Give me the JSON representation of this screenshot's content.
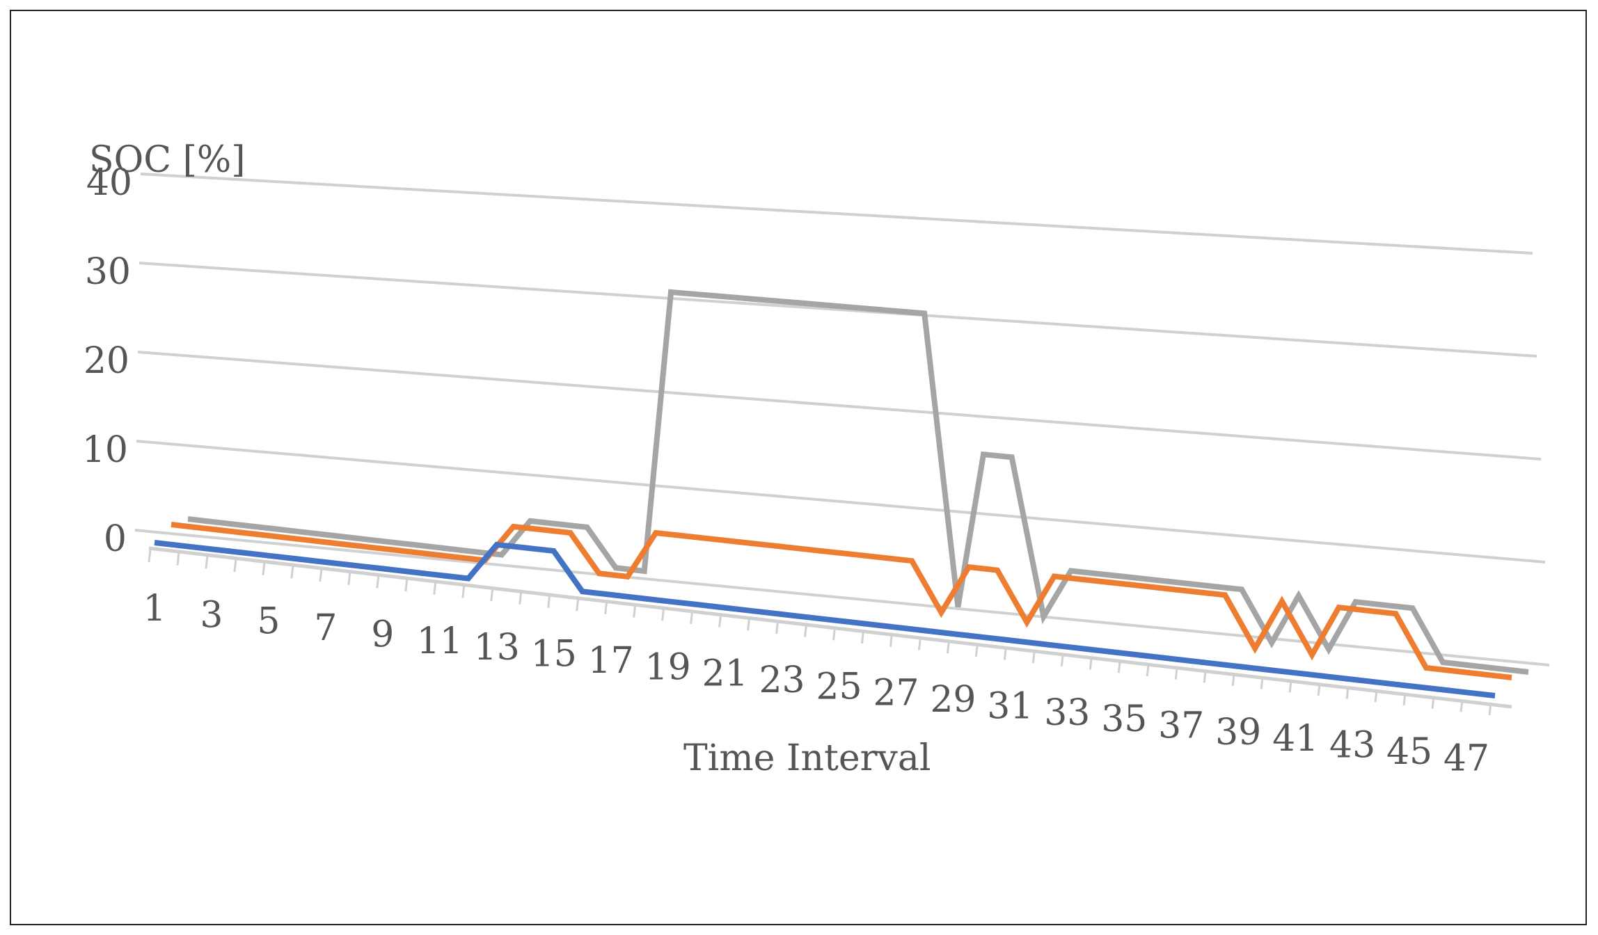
{
  "chart_data": {
    "type": "line",
    "style": "3d-perspective",
    "title": "",
    "ylabel": "SOC [%]",
    "xlabel": "Time Interval",
    "ylim": [
      0,
      40
    ],
    "y_ticks": [
      "0",
      "10",
      "20",
      "30",
      "40"
    ],
    "x_ticks": [
      "1",
      "3",
      "5",
      "7",
      "9",
      "11",
      "13",
      "15",
      "17",
      "19",
      "21",
      "23",
      "25",
      "27",
      "29",
      "31",
      "33",
      "35",
      "37",
      "39",
      "41",
      "43",
      "45",
      "47"
    ],
    "x": [
      1,
      2,
      3,
      4,
      5,
      6,
      7,
      8,
      9,
      10,
      11,
      12,
      13,
      14,
      15,
      16,
      17,
      18,
      19,
      20,
      21,
      22,
      23,
      24,
      25,
      26,
      27,
      28,
      29,
      30,
      31,
      32,
      33,
      34,
      35,
      36,
      37,
      38,
      39,
      40,
      41,
      42,
      43,
      44,
      45,
      46,
      47,
      48
    ],
    "grid": true,
    "legend": "none",
    "series": [
      {
        "color": "#4472c4",
        "values": [
          0,
          0,
          0,
          0,
          0,
          0,
          0,
          0,
          0,
          0,
          0,
          0,
          4,
          4,
          4,
          0,
          0,
          0,
          0,
          0,
          0,
          0,
          0,
          0,
          0,
          0,
          0,
          0,
          0,
          0,
          0,
          0,
          0,
          0,
          0,
          0,
          0,
          0,
          0,
          0,
          0,
          0,
          0,
          0,
          0,
          0,
          0,
          0
        ]
      },
      {
        "color": "#ed7d31",
        "values": [
          0,
          0,
          0,
          0,
          0,
          0,
          0,
          0,
          0,
          0,
          0,
          0,
          4,
          4,
          4,
          0,
          0,
          5,
          5,
          5,
          5,
          5,
          5,
          5,
          5,
          5,
          5,
          0,
          5,
          5,
          0,
          5,
          5,
          5,
          5,
          5,
          5,
          5,
          0,
          5,
          0,
          5,
          5,
          5,
          0,
          0,
          0,
          0
        ]
      },
      {
        "color": "#a5a5a5",
        "values": [
          0,
          0,
          0,
          0,
          0,
          0,
          0,
          0,
          0,
          0,
          0,
          0,
          4,
          4,
          4,
          0,
          0,
          30,
          30,
          30,
          30,
          30,
          30,
          30,
          30,
          30,
          30,
          0,
          16,
          16,
          0,
          5,
          5,
          5,
          5,
          5,
          5,
          5,
          0,
          5,
          0,
          5,
          5,
          5,
          0,
          0,
          0,
          0
        ]
      }
    ]
  }
}
